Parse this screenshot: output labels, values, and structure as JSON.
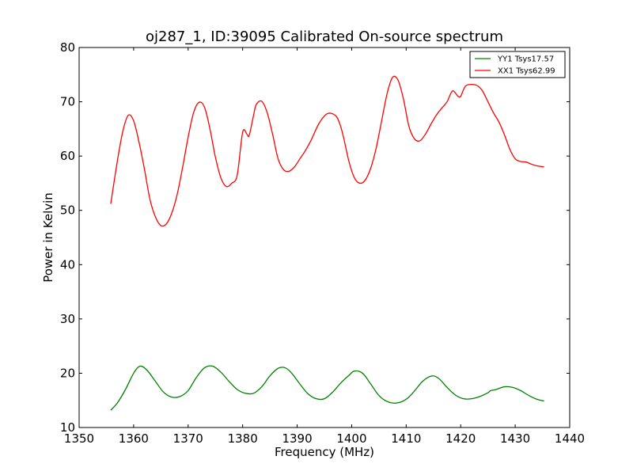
{
  "chart_data": {
    "type": "line",
    "title": "oj287_1, ID:39095 Calibrated On-source spectrum",
    "xlabel": "Frequency (MHz)",
    "ylabel": "Power in Kelvin",
    "xlim": [
      1350,
      1440
    ],
    "ylim": [
      10,
      80
    ],
    "xticks": [
      1350,
      1360,
      1370,
      1380,
      1390,
      1400,
      1410,
      1420,
      1430,
      1440
    ],
    "yticks": [
      10,
      20,
      30,
      40,
      50,
      60,
      70,
      80
    ],
    "grid": false,
    "legend_position": "top-right",
    "series": [
      {
        "name": "YY1 Tsys17.57",
        "color": "#008000",
        "x": [
          1355.8,
          1357,
          1358.5,
          1360,
          1361.2,
          1362.5,
          1364,
          1365.5,
          1367,
          1368.5,
          1370,
          1371.5,
          1373,
          1374.5,
          1376,
          1377.5,
          1379,
          1380.5,
          1382,
          1383.5,
          1385,
          1386.5,
          1387.8,
          1389,
          1390.5,
          1392,
          1393.5,
          1395,
          1396.5,
          1398,
          1399.5,
          1400.5,
          1402,
          1403.5,
          1405,
          1406.5,
          1408.2,
          1410,
          1411.5,
          1413,
          1414.7,
          1416,
          1417.5,
          1419,
          1420.5,
          1422,
          1423.5,
          1425,
          1425.5,
          1426.5,
          1428,
          1429.5,
          1431,
          1432.5,
          1434,
          1435.3
        ],
        "y": [
          13.2,
          14.5,
          17.0,
          20.0,
          21.3,
          20.5,
          18.5,
          16.5,
          15.6,
          15.7,
          16.8,
          19.2,
          21.0,
          21.3,
          20.2,
          18.5,
          17.0,
          16.3,
          16.3,
          17.5,
          19.5,
          20.9,
          21.0,
          20.0,
          18.0,
          16.2,
          15.3,
          15.3,
          16.5,
          18.2,
          19.6,
          20.4,
          20.0,
          18.0,
          15.9,
          14.8,
          14.5,
          15.2,
          16.7,
          18.5,
          19.5,
          19.0,
          17.4,
          16.0,
          15.3,
          15.3,
          15.7,
          16.4,
          16.8,
          17.0,
          17.5,
          17.4,
          16.8,
          15.9,
          15.2,
          14.9
        ]
      },
      {
        "name": "XX1 Tsys62.99",
        "color": "#ff0000",
        "x": [
          1355.8,
          1357,
          1358,
          1359,
          1360,
          1361,
          1362,
          1363,
          1364,
          1365,
          1366,
          1367,
          1368,
          1369,
          1370,
          1371,
          1372,
          1373,
          1374,
          1375,
          1376,
          1377,
          1378,
          1379,
          1380,
          1380.8,
          1381.2,
          1382,
          1382.5,
          1383.5,
          1384.5,
          1385.5,
          1386.5,
          1387.5,
          1388.5,
          1389.5,
          1390.5,
          1391.5,
          1392.5,
          1394,
          1395.5,
          1397,
          1397.8,
          1398.5,
          1399.5,
          1400.5,
          1401.5,
          1402.5,
          1403.5,
          1404.5,
          1405.5,
          1406.5,
          1407.5,
          1408.5,
          1409.5,
          1410.5,
          1411.5,
          1412.5,
          1413.5,
          1414.5,
          1415.5,
          1416.5,
          1417.5,
          1418.5,
          1419.5,
          1420,
          1420.5,
          1421,
          1422,
          1423,
          1424,
          1425,
          1426,
          1427,
          1428,
          1429,
          1430,
          1431,
          1432,
          1433,
          1434,
          1435.3
        ],
        "y": [
          51.2,
          59.0,
          64.5,
          67.5,
          66.5,
          62.5,
          57.5,
          52.0,
          48.8,
          47.2,
          47.5,
          49.5,
          53.0,
          58.0,
          63.5,
          68.0,
          69.9,
          69.0,
          65.0,
          59.8,
          56.0,
          54.4,
          55.0,
          56.5,
          64.4,
          64.0,
          63.8,
          67.5,
          69.5,
          70.1,
          68.0,
          64.0,
          59.5,
          57.5,
          57.2,
          58.0,
          59.5,
          61.0,
          62.8,
          66.0,
          67.8,
          67.5,
          66.0,
          63.5,
          59.0,
          56.0,
          55.0,
          55.6,
          57.8,
          61.5,
          66.5,
          71.5,
          74.5,
          74.0,
          70.5,
          65.5,
          63.2,
          62.8,
          64.0,
          65.8,
          67.5,
          68.8,
          70.0,
          72.0,
          71.0,
          71.0,
          72.2,
          73.0,
          73.2,
          73.0,
          72.0,
          70.0,
          68.0,
          66.3,
          64.0,
          61.3,
          59.5,
          59.0,
          58.9,
          58.5,
          58.2,
          58.0
        ]
      }
    ]
  }
}
